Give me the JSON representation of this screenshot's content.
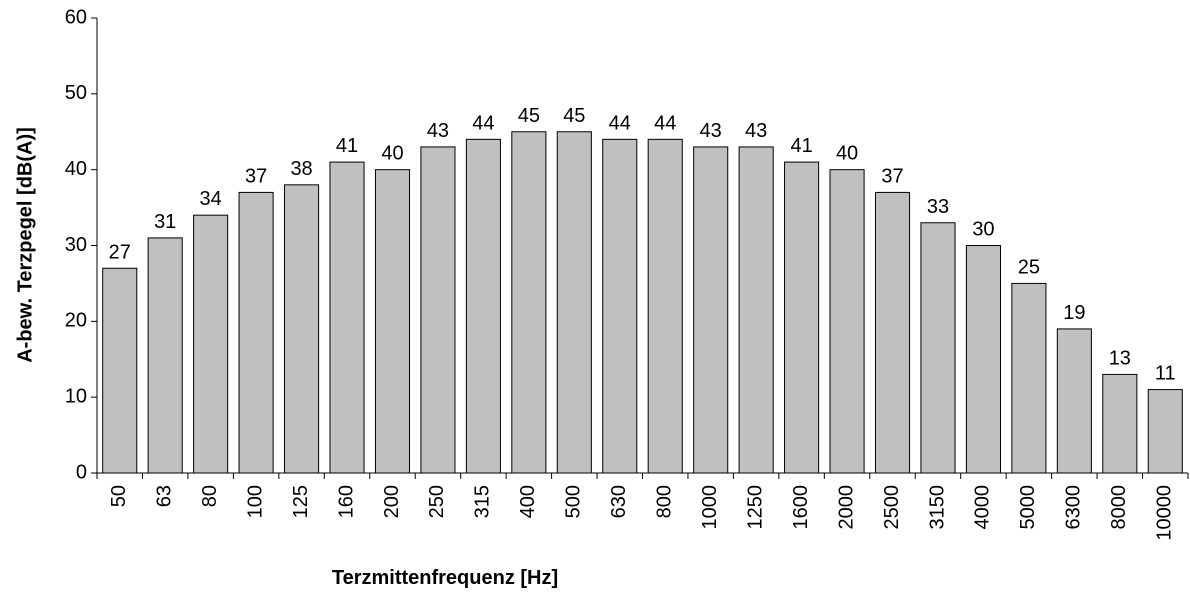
{
  "chart_data": {
    "type": "bar",
    "x_label": "Terzmittenfrequenz [Hz]",
    "y_label": "A-bew. Terzpegel [dB(A)]",
    "categories": [
      "50",
      "63",
      "80",
      "100",
      "125",
      "160",
      "200",
      "250",
      "315",
      "400",
      "500",
      "630",
      "800",
      "1000",
      "1250",
      "1600",
      "2000",
      "2500",
      "3150",
      "4000",
      "5000",
      "6300",
      "8000",
      "10000"
    ],
    "values": [
      27,
      31,
      34,
      37,
      38,
      41,
      40,
      43,
      44,
      45,
      45,
      44,
      44,
      43,
      43,
      41,
      40,
      37,
      33,
      30,
      25,
      19,
      13,
      11
    ],
    "color": "#c0c0c0",
    "ylim": [
      0,
      60
    ],
    "yticks": [
      0,
      10,
      20,
      30,
      40,
      50,
      60
    ],
    "grid": false
  }
}
